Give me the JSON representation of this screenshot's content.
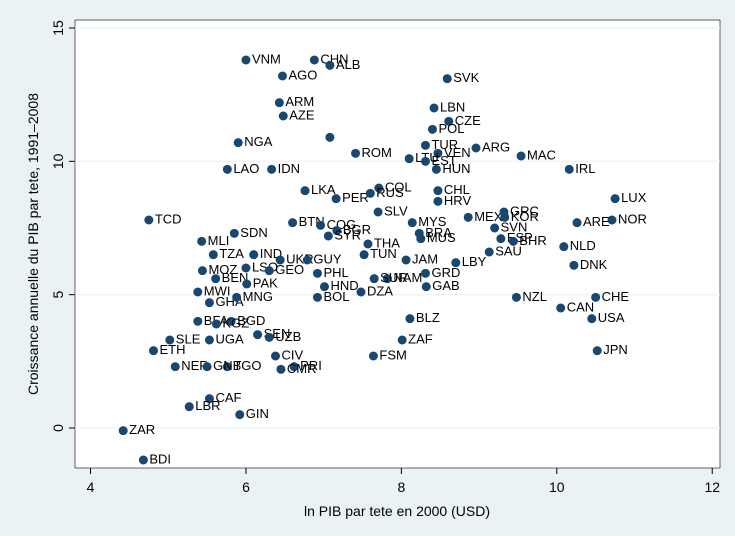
{
  "chart_data": {
    "type": "scatter",
    "x_label": "ln PIB par tete en 2000 (USD)",
    "y_label": "Croissance annuelle du PIB par tete, 1991–2008",
    "color": "#1a476f",
    "xlim": [
      3.8,
      12.1
    ],
    "ylim": [
      -1.5,
      15.3
    ],
    "xticks": [
      4,
      6,
      8,
      10,
      12
    ],
    "yticks": [
      0,
      5,
      10,
      15
    ],
    "labels": [
      "VNM",
      "CHN",
      "ALB",
      "AGO",
      "SVK",
      "ARM",
      "LBN",
      "AZE",
      "CZE",
      "POL",
      null,
      "NGA",
      "TUR",
      "ARG",
      "ROM",
      "VEN",
      "LTU",
      "MAC",
      "LAO",
      "IDN",
      "IRL",
      "HUN",
      "EST",
      "CHL",
      "LKA",
      "COL",
      "PER",
      "RUS",
      "LUX",
      "HRV",
      "TCD",
      "SLV",
      "MEX",
      "GRC",
      "KOR",
      "NOR",
      "ARE",
      "BTN",
      "COG",
      "BGR",
      "SYR",
      "SDN",
      "MLI",
      "MYS",
      "SVN",
      "ESP",
      "BHR",
      "THA",
      "BRA",
      "MUS",
      "NLD",
      "SAU",
      "TZA",
      "IND",
      "UKR",
      "GUY",
      "TUN",
      "JAM",
      "LBY",
      "DNK",
      "MOZ",
      "LSO",
      "GEO",
      "PHL",
      "NAM",
      "GRD",
      "SUR",
      "BEN",
      "PAK",
      "GHA",
      "MWI",
      "MNG",
      "NZL",
      "CHE",
      "BOL",
      "HND",
      "DZA",
      "GAB",
      "CAN",
      "USA",
      "BLZ",
      "BFA",
      "BGD",
      "KGZ",
      "SEN",
      "UZB",
      "UGA",
      "SLE",
      "ZAF",
      "ETH",
      "JPN",
      "FSM",
      "CIV",
      "NER",
      "TGO",
      "GNB",
      "PRI",
      "CMR",
      "CAF",
      "LBR",
      "GIN",
      "ZAR",
      "BDI"
    ],
    "x": [
      6.0,
      6.88,
      7.08,
      6.47,
      8.59,
      6.43,
      8.42,
      6.48,
      8.61,
      8.4,
      7.08,
      5.9,
      8.31,
      8.96,
      7.41,
      8.47,
      8.1,
      9.54,
      5.76,
      6.33,
      10.16,
      8.45,
      8.31,
      8.47,
      6.76,
      7.71,
      7.16,
      7.6,
      10.75,
      8.47,
      4.75,
      7.7,
      8.86,
      9.32,
      9.33,
      10.71,
      10.26,
      6.6,
      6.96,
      7.17,
      7.06,
      5.85,
      5.43,
      8.14,
      9.2,
      9.28,
      9.44,
      7.57,
      8.23,
      8.25,
      10.09,
      9.13,
      5.58,
      6.1,
      6.44,
      6.79,
      7.52,
      8.06,
      8.7,
      10.22,
      5.44,
      6.0,
      6.3,
      6.92,
      7.82,
      8.31,
      7.65,
      5.61,
      6.01,
      5.53,
      5.38,
      5.88,
      9.48,
      10.5,
      6.92,
      7.01,
      7.48,
      8.32,
      10.05,
      10.45,
      8.11,
      5.38,
      5.81,
      5.62,
      6.15,
      6.3,
      5.53,
      5.02,
      8.01,
      4.81,
      10.52,
      7.64,
      6.38,
      5.09,
      5.76,
      5.5,
      6.62,
      6.45,
      5.53,
      5.27,
      5.92,
      4.42,
      4.68
    ],
    "values": [
      13.8,
      13.8,
      13.6,
      13.2,
      13.1,
      12.2,
      12.0,
      11.7,
      11.5,
      11.2,
      10.9,
      10.7,
      10.6,
      10.5,
      10.3,
      10.3,
      10.1,
      10.2,
      9.7,
      9.7,
      9.7,
      9.7,
      10.0,
      8.9,
      8.9,
      9.0,
      8.6,
      8.8,
      8.6,
      8.5,
      7.8,
      8.1,
      7.9,
      8.1,
      7.9,
      7.8,
      7.7,
      7.7,
      7.6,
      7.4,
      7.2,
      7.3,
      7.0,
      7.7,
      7.5,
      7.1,
      7.0,
      6.9,
      7.3,
      7.1,
      6.8,
      6.6,
      6.5,
      6.5,
      6.3,
      6.3,
      6.5,
      6.3,
      6.2,
      6.1,
      5.9,
      6.0,
      5.9,
      5.8,
      5.6,
      5.8,
      5.6,
      5.6,
      5.4,
      4.7,
      5.1,
      4.9,
      4.9,
      4.9,
      4.9,
      5.3,
      5.1,
      5.3,
      4.5,
      4.1,
      4.1,
      4.0,
      4.0,
      3.9,
      3.5,
      3.4,
      3.3,
      3.3,
      3.3,
      2.9,
      2.9,
      2.7,
      2.7,
      2.3,
      2.3,
      2.3,
      2.3,
      2.2,
      1.1,
      0.8,
      0.5,
      -0.1,
      -1.2
    ]
  }
}
